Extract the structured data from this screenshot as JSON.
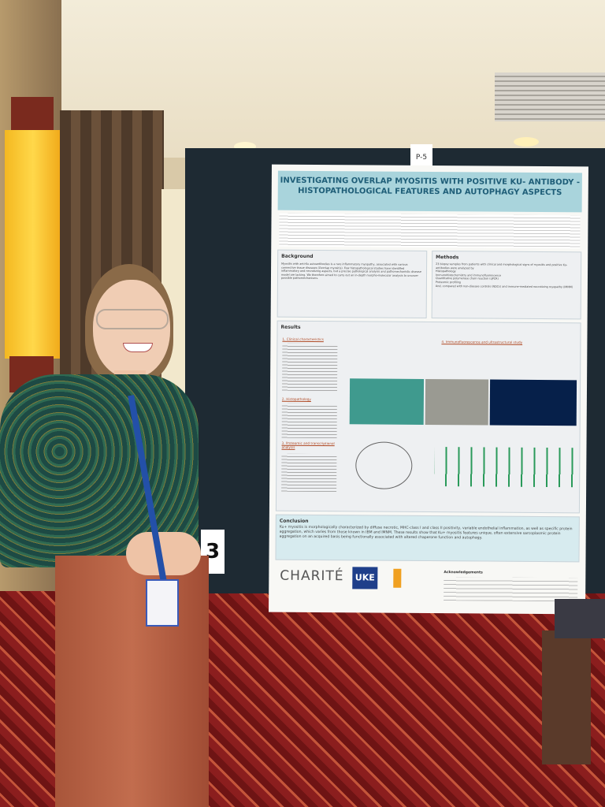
{
  "sign": "P-5",
  "board_number": "3",
  "poster": {
    "title": "INVESTIGATING OVERLAP MYOSITIS WITH POSITIVE KU- ANTIBODY - HISTOPATHOLOGICAL FEATURES AND AUTOPHAGY ASPECTS",
    "background": {
      "heading": "Background",
      "text": "Myositis with anti-Ku autoantibodies is a rare inflammatory myopathy, associated with various connective tissue diseases (Overlap myositis). Few histopathological studies have identified inflammatory and necrotizing aspects, but a precise pathological analysis and pathomechanistic disease model are lacking. We therefore aimed to carry out an in-depth morpho-molecular analysis to uncover possible pathomechanisms."
    },
    "methods": {
      "heading": "Methods",
      "text": "23 biopsy samples from patients with clinical and morphological signs of myositis and positive Ku-antibodies were analyzed by",
      "items": [
        "Histopathology",
        "Immunohistochemistry and immunofluorescence",
        "Quantitative polymerase chain reaction (qPCR)",
        "Proteomic profiling",
        "And, compared with non-disease controls (NDCs) and immune-mediated necrotizing myopathy (IMNM)"
      ]
    },
    "results": {
      "heading": "Results",
      "subsections": [
        "1. Clinical characteristics",
        "2. Histopathology",
        "3. Proteomic and transcriptional analysis",
        "4. Immunofluorescence and ultrastructural study"
      ]
    },
    "conclusion": {
      "heading": "Conclusion",
      "text": "Ku+ myositis is morphologically characterized by diffuse necrotic, MHC-class I and class II positivity, variable endothelial inflammation, as well as specific protein aggregation, which varies from those known in IBM and IMNM. These results show that Ku+ myositis features unique, often extensive sarcoplasmic protein aggregation on an acquired basis being functionally associated with altered chaperone function and autophagy."
    },
    "logos": [
      "CHARITÉ",
      "UKE"
    ],
    "acknowledgements_heading": "Acknowledgements"
  }
}
